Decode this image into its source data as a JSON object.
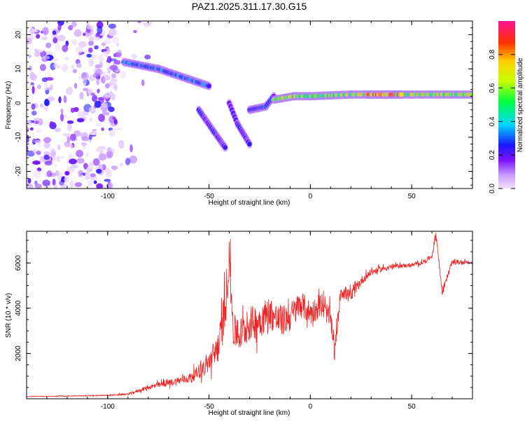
{
  "title": "PAZ1.2025.311.17.30.G15",
  "chart_data": [
    {
      "type": "heatmap",
      "xlabel": "Height of straight line (km)",
      "ylabel": "Frequency (Hz)",
      "xlim": [
        -140,
        80
      ],
      "ylim": [
        -25,
        24
      ],
      "x_ticks": [
        -100,
        -50,
        0,
        50
      ],
      "y_ticks": [
        -20,
        -10,
        0,
        10,
        20
      ],
      "colorbar_label": "Normalized spectral amplitude",
      "colorbar_ticks": [
        0.0,
        0.2,
        0.4,
        0.6,
        0.8
      ],
      "colorbar_range": [
        0,
        1
      ],
      "noise_region_x": [
        -140,
        -95
      ],
      "noise_density": 0.35,
      "ridges": [
        {
          "points": [
            [
              -92,
              12
            ],
            [
              -75,
              10
            ],
            [
              -60,
              7
            ],
            [
              -50,
              5
            ]
          ],
          "amplitude": 0.35
        },
        {
          "points": [
            [
              -55,
              -2
            ],
            [
              -48,
              -8
            ],
            [
              -42,
              -13
            ]
          ],
          "amplitude": 0.25
        },
        {
          "points": [
            [
              -40,
              0
            ],
            [
              -36,
              -6
            ],
            [
              -30,
              -12
            ]
          ],
          "amplitude": 0.25
        },
        {
          "points": [
            [
              -30,
              -2
            ],
            [
              -22,
              -1
            ],
            [
              -18,
              2
            ]
          ],
          "amplitude": 0.3
        },
        {
          "points": [
            [
              -18,
              1
            ],
            [
              -8,
              2
            ],
            [
              0,
              2
            ],
            [
              20,
              2.5
            ],
            [
              50,
              2.5
            ],
            [
              80,
              2.5
            ]
          ],
          "amplitude": 0.7
        },
        {
          "points": [
            [
              28,
              2.5
            ],
            [
              45,
              2.5
            ]
          ],
          "amplitude": 0.97
        }
      ]
    },
    {
      "type": "line",
      "xlabel": "Height of straight line (km)",
      "ylabel": "SNR (10 * v/v)",
      "xlim": [
        -140,
        80
      ],
      "ylim": [
        0,
        7400
      ],
      "x_ticks": [
        -100,
        -50,
        0,
        50
      ],
      "y_ticks": [
        2000,
        4000,
        6000
      ],
      "color": "#ee2222",
      "series": [
        {
          "x": [
            -140,
            -120,
            -100,
            -90,
            -80,
            -70,
            -60,
            -55,
            -50,
            -45,
            -42,
            -40,
            -38,
            -35,
            -30,
            -25,
            -20,
            -15,
            -10,
            -5,
            0,
            5,
            10,
            12,
            15,
            20,
            25,
            30,
            40,
            50,
            55,
            60,
            62,
            65,
            70,
            80
          ],
          "values": [
            100,
            120,
            150,
            200,
            500,
            700,
            900,
            1200,
            1600,
            2400,
            4000,
            6300,
            3000,
            2800,
            3300,
            3500,
            3800,
            3400,
            3600,
            4200,
            3800,
            4100,
            3600,
            2000,
            4800,
            4500,
            5200,
            5600,
            5850,
            5900,
            6000,
            6300,
            7300,
            4700,
            6050,
            6000
          ],
          "noise_amplitude": [
            20,
            30,
            40,
            80,
            200,
            300,
            400,
            600,
            900,
            1500,
            2200,
            1800,
            1500,
            1500,
            1500,
            1600,
            1500,
            1400,
            1300,
            1200,
            1100,
            1000,
            900,
            800,
            700,
            600,
            400,
            300,
            200,
            180,
            180,
            200,
            400,
            300,
            200,
            150
          ]
        }
      ]
    }
  ]
}
